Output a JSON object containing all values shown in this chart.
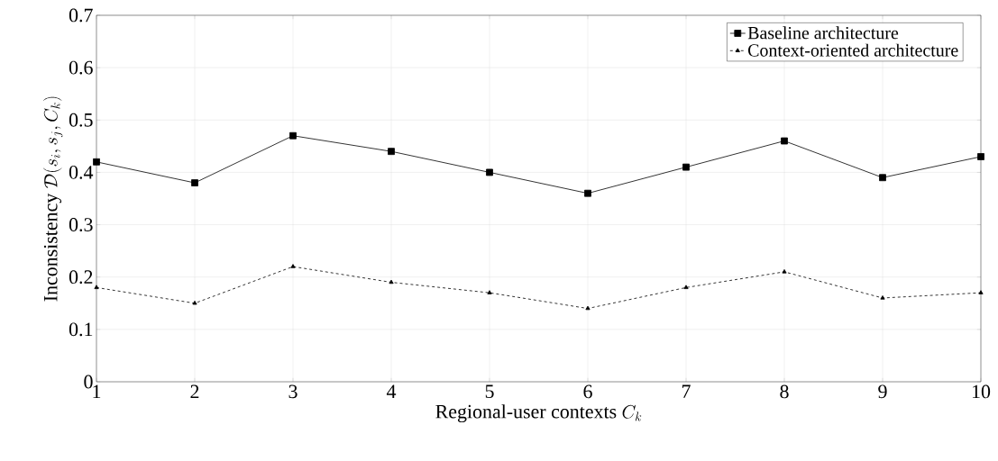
{
  "chart_data": {
    "type": "line",
    "xlabel": "\\mbox{Regional-user contexts } C_k",
    "ylabel": "\\mbox{Inconsistency } \\mathcal{D}(s_i,s_j,C_k)",
    "x": [
      1,
      2,
      3,
      4,
      5,
      6,
      7,
      8,
      9,
      10
    ],
    "series": [
      {
        "name": "Baseline architecture",
        "color": "#000000",
        "marker": "square",
        "line_style": "solid",
        "values": [
          0.42,
          0.38,
          0.47,
          0.44,
          0.4,
          0.36,
          0.41,
          0.46,
          0.39,
          0.43
        ]
      },
      {
        "name": "Context-oriented architecture",
        "color": "#000000",
        "marker": "triangle",
        "line_style": "dashed",
        "values": [
          0.18,
          0.15,
          0.22,
          0.19,
          0.17,
          0.14,
          0.18,
          0.21,
          0.16,
          0.17
        ]
      }
    ],
    "xlim": [
      1,
      10
    ],
    "xticks": [
      1,
      2,
      3,
      4,
      5,
      6,
      7,
      8,
      9,
      10
    ],
    "ylim": [
      0,
      0.7
    ],
    "yticks": [
      0,
      0.1,
      0.2,
      0.3,
      0.4,
      0.5,
      0.6,
      0.7
    ],
    "grid": true,
    "legend": "top right"
  }
}
